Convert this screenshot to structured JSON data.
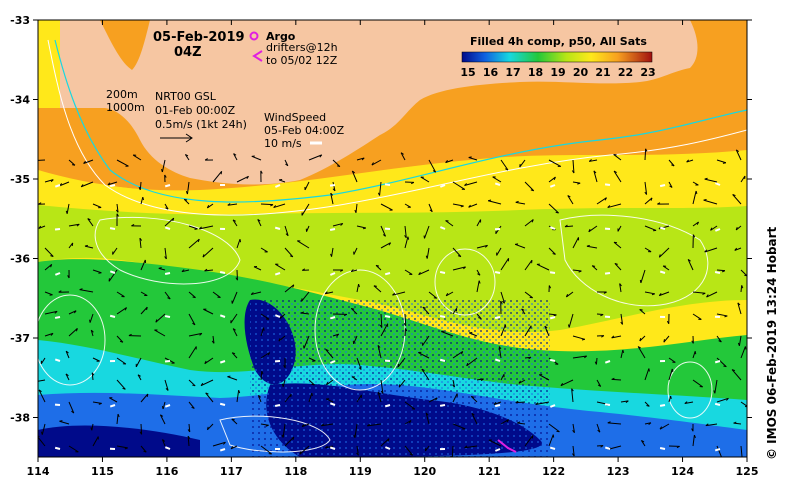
{
  "title": {
    "date": "05-Feb-2019",
    "time": "04Z"
  },
  "legend": {
    "argo_label": "Argo",
    "drifters_line1": "drifters@12h",
    "drifters_line2": "to 05/02 12Z",
    "colorbar_title": "Filled 4h comp, p50, All Sats",
    "colorbar_ticks": [
      "15",
      "16",
      "17",
      "18",
      "19",
      "20",
      "21",
      "22",
      "23"
    ],
    "depth_200": "200m",
    "depth_1000": "1000m",
    "current_title": "NRT00 GSL",
    "current_date": "01-Feb 00:00Z",
    "current_scale": "0.5m/s (1kt 24h)",
    "wind_title": "WindSpeed",
    "wind_date": "05-Feb 04:00Z",
    "wind_scale": "10 m/s"
  },
  "axes": {
    "x_ticks": [
      "114",
      "115",
      "116",
      "117",
      "118",
      "119",
      "120",
      "121",
      "122",
      "123",
      "124",
      "125"
    ],
    "y_ticks": [
      "-33",
      "-34",
      "-35",
      "-36",
      "-37",
      "-38"
    ]
  },
  "credit": "© IMOS 06-Feb-2019 13:24 Hobart",
  "colors": {
    "land": "#f6c6a2",
    "deep_blue": "#000a8a",
    "cyan": "#18d8e0",
    "green": "#23c83a",
    "yellow_green": "#b8e616",
    "yellow": "#ffe81a",
    "orange": "#f7a020",
    "red": "#c81818",
    "argo": "#e020e0"
  }
}
